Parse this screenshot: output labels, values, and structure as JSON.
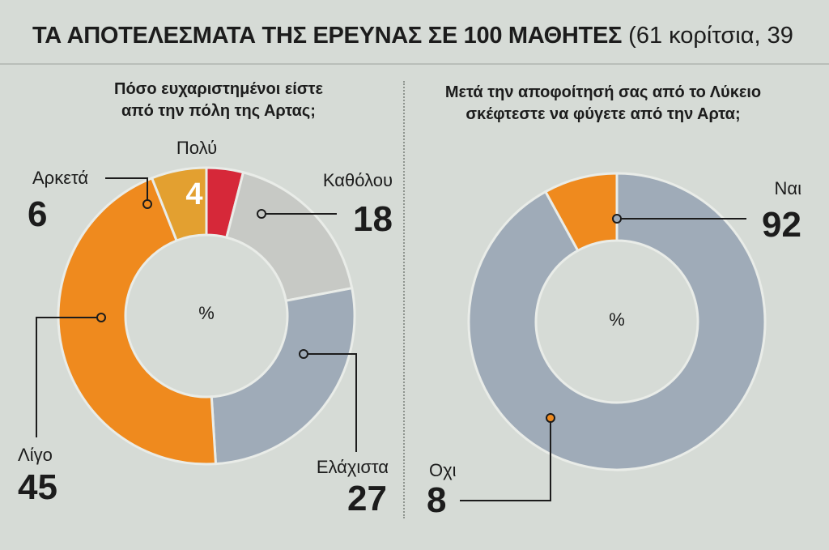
{
  "header": {
    "title": "ΤΑ ΑΠΟΤΕΛΕΣΜΑΤΑ ΤΗΣ ΕΡΕΥΝΑΣ ΣΕ 100 ΜΑΘΗΤΕΣ",
    "subtitle": "(61 κορίτσια, 39"
  },
  "chart_data": [
    {
      "type": "pie",
      "title_lines": [
        "Πόσο ευχαριστημένοι είστε",
        "από την πόλη της Αρτας;"
      ],
      "center_label": "%",
      "categories": [
        "Πολύ",
        "Καθόλου",
        "Ελάχιστα",
        "Λίγο",
        "Αρκετά"
      ],
      "values": [
        4,
        18,
        27,
        45,
        6
      ],
      "colors": [
        "#d62839",
        "#c7c9c5",
        "#9fabb8",
        "#ef8a1e",
        "#e3a030"
      ]
    },
    {
      "type": "pie",
      "title_lines": [
        "Μετά την αποφοίτησή σας από το Λύκειο",
        "σκέφτεστε να φύγετε από την Αρτα;"
      ],
      "center_label": "%",
      "categories": [
        "Ναι",
        "Οχι"
      ],
      "values": [
        92,
        8
      ],
      "colors": [
        "#9fabb8",
        "#ef8a1e"
      ]
    }
  ]
}
